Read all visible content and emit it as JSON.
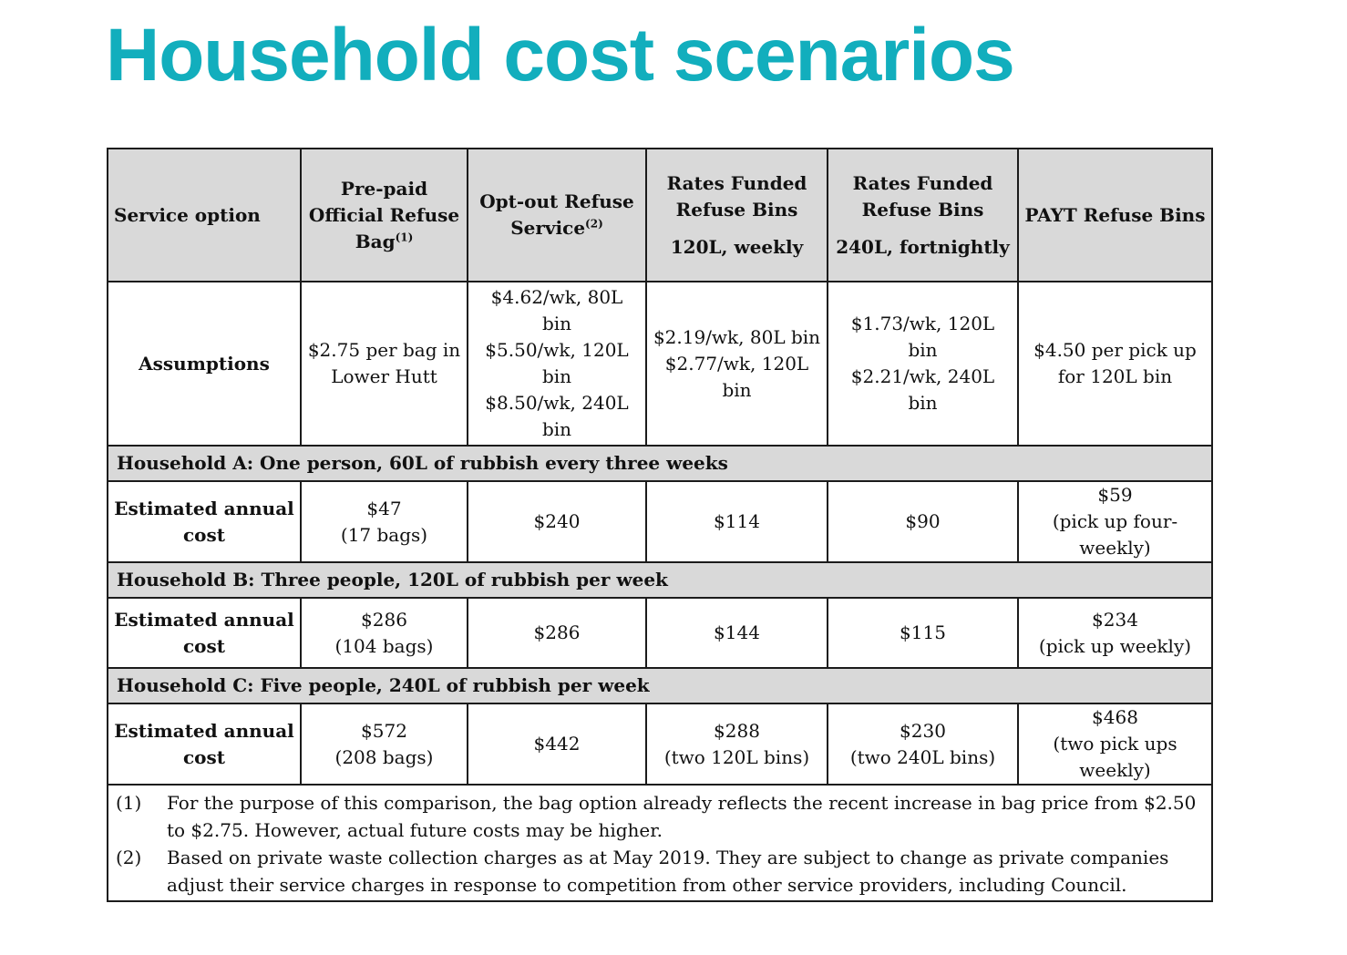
{
  "title": "Household cost scenarios",
  "table": {
    "header": {
      "service_option": "Service option",
      "col1": "Pre-paid Official Refuse Bag",
      "col1_sup": "(1)",
      "col2": "Opt-out Refuse Service",
      "col2_sup": "(2)",
      "col3_line1": "Rates Funded Refuse Bins",
      "col3_line2": "120L, weekly",
      "col4_line1": "Rates Funded Refuse Bins",
      "col4_line2": "240L, fortnightly",
      "col5": "PAYT Refuse Bins"
    },
    "assumptions": {
      "label": "Assumptions",
      "col1": "$2.75 per bag in Lower Hutt",
      "col2": [
        "$4.62/wk, 80L bin",
        "$5.50/wk, 120L bin",
        "$8.50/wk, 240L bin"
      ],
      "col3": [
        "$2.19/wk, 80L bin",
        "$2.77/wk, 120L bin"
      ],
      "col4": [
        "$1.73/wk, 120L bin",
        "$2.21/wk, 240L bin"
      ],
      "col5": "$4.50 per pick up for 120L bin"
    },
    "households": [
      {
        "section": "Household A: One person, 60L of rubbish every three weeks",
        "label": "Estimated annual cost",
        "col1_value": "$47",
        "col1_note": "(17 bags)",
        "col2_value": "$240",
        "col3_value": "$114",
        "col4_value": "$90",
        "col5_value": "$59",
        "col5_note": "(pick up four-weekly)"
      },
      {
        "section": "Household B: Three people, 120L of rubbish per week",
        "label": "Estimated annual cost",
        "col1_value": "$286",
        "col1_note": "(104 bags)",
        "col2_value": "$286",
        "col3_value": "$144",
        "col4_value": "$115",
        "col5_value": "$234",
        "col5_note": "(pick up weekly)"
      },
      {
        "section": "Household C: Five people, 240L of rubbish per week",
        "label": "Estimated annual cost",
        "col1_value": "$572",
        "col1_note": "(208 bags)",
        "col2_value": "$442",
        "col3_value": "$288",
        "col3_note": "(two 120L bins)",
        "col4_value": "$230",
        "col4_note": "(two 240L bins)",
        "col5_value": "$468",
        "col5_note": "(two pick ups weekly)"
      }
    ],
    "footnotes": [
      {
        "num": "(1)",
        "text": "For the purpose of this comparison, the bag option already reflects the recent increase in bag price from $2.50 to $2.75. However, actual future costs may be higher."
      },
      {
        "num": "(2)",
        "text": "Based on private waste collection charges as at May 2019. They are subject to change as private companies adjust their service charges in response to competition from other service providers, including Council."
      }
    ]
  }
}
